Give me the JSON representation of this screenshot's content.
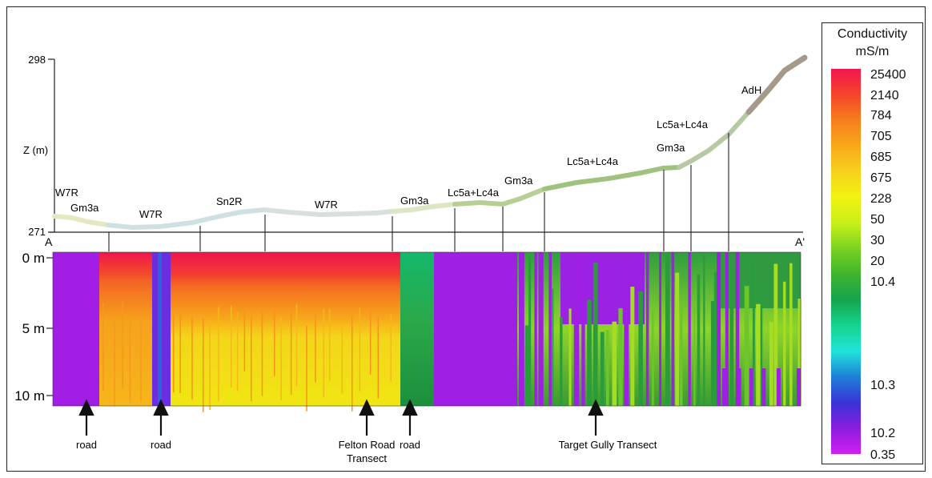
{
  "profile": {
    "axis_label": "Z (m)",
    "z_top": "298",
    "z_bottom": "271",
    "start_label": "A",
    "end_label": "A'",
    "unit_labels": [
      {
        "text": "W7R",
        "ref": "w7r-1"
      },
      {
        "text": "Gm3a",
        "ref": "gm3a-1"
      },
      {
        "text": "W7R",
        "ref": "w7r-2"
      },
      {
        "text": "Sn2R",
        "ref": "sn2r"
      },
      {
        "text": "W7R",
        "ref": "w7r-3"
      },
      {
        "text": "Gm3a",
        "ref": "gm3a-2"
      },
      {
        "text": "Lc5a+Lc4a",
        "ref": "lc-1"
      },
      {
        "text": "Gm3a",
        "ref": "gm3a-3"
      },
      {
        "text": "Lc5a+Lc4a",
        "ref": "lc-2"
      },
      {
        "text": "Lc5a+Lc4a",
        "ref": "lc-3"
      },
      {
        "text": "Gm3a",
        "ref": "gm3a-4"
      },
      {
        "text": "AdH",
        "ref": "adh"
      }
    ]
  },
  "section": {
    "depth_labels": [
      "0 m",
      "5 m",
      "10 m"
    ]
  },
  "markers": [
    {
      "label": "road"
    },
    {
      "label": "road"
    },
    {
      "label": "Felton Road Transect"
    },
    {
      "label": "road"
    },
    {
      "label": "Target Gully Transect"
    }
  ],
  "legend": {
    "title": "Conductivity",
    "unit": "mS/m",
    "ticks": [
      "25400",
      "2140",
      "784",
      "705",
      "685",
      "675",
      "228",
      "50",
      "30",
      "20",
      "10.4",
      "10.3",
      "10.2",
      "0.35"
    ],
    "colors": [
      "#f2164e",
      "#f5452a",
      "#f77d1c",
      "#f8a81a",
      "#f6d21c",
      "#f2f211",
      "#c8f01a",
      "#79d21f",
      "#3fb42e",
      "#15a44f",
      "#14d58e",
      "#1fe3d8",
      "#1e7fd8",
      "#3a32d8",
      "#8a1ee0",
      "#d11ff0"
    ]
  }
}
